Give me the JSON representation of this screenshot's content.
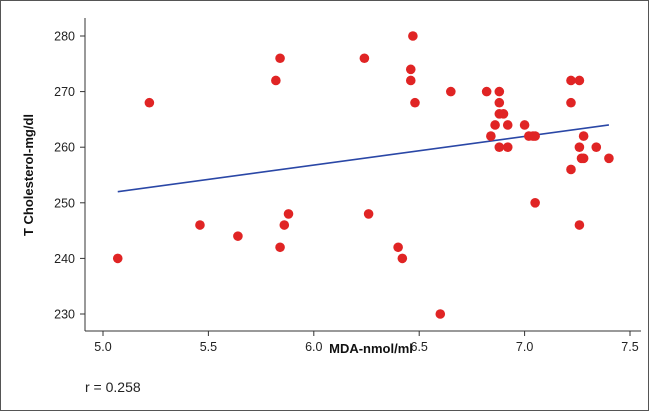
{
  "chart_data": {
    "type": "scatter",
    "title": "",
    "xlabel": "MDA-nmol/ml",
    "ylabel": "T Cholesterol-mg/dl",
    "xlim": [
      5.0,
      7.5
    ],
    "ylim": [
      228,
      282
    ],
    "xticks": [
      "5.0",
      "5.5",
      "6.0",
      "6.5",
      "7.0",
      "7.5"
    ],
    "yticks": [
      "230",
      "240",
      "250",
      "260",
      "270",
      "280"
    ],
    "grid": false,
    "annotation": "r = 0.258",
    "colors": {
      "points": "#e02424",
      "trend_line": "#2a47a6",
      "axis": "#333333",
      "frame": "#555555"
    },
    "trend_line": {
      "x": [
        5.07,
        7.4
      ],
      "y": [
        252.0,
        264.0
      ]
    },
    "x": [
      5.07,
      5.22,
      5.46,
      5.64,
      5.82,
      5.84,
      5.84,
      5.86,
      5.88,
      6.24,
      6.26,
      6.4,
      6.42,
      6.46,
      6.46,
      6.47,
      6.48,
      6.6,
      6.65,
      6.82,
      6.84,
      6.86,
      6.88,
      6.88,
      6.88,
      6.88,
      6.9,
      6.92,
      6.92,
      7.0,
      7.02,
      7.04,
      7.05,
      7.05,
      7.22,
      7.22,
      7.22,
      7.26,
      7.26,
      7.26,
      7.27,
      7.28,
      7.28,
      7.34,
      7.4
    ],
    "y": [
      240,
      268,
      246,
      244,
      272,
      276,
      242,
      246,
      248,
      276,
      248,
      242,
      240,
      274,
      272,
      280,
      268,
      230,
      270,
      270,
      262,
      264,
      270,
      268,
      266,
      260,
      266,
      264,
      260,
      264,
      262,
      262,
      262,
      250,
      272,
      268,
      256,
      272,
      246,
      260,
      258,
      262,
      258,
      260,
      258
    ]
  }
}
